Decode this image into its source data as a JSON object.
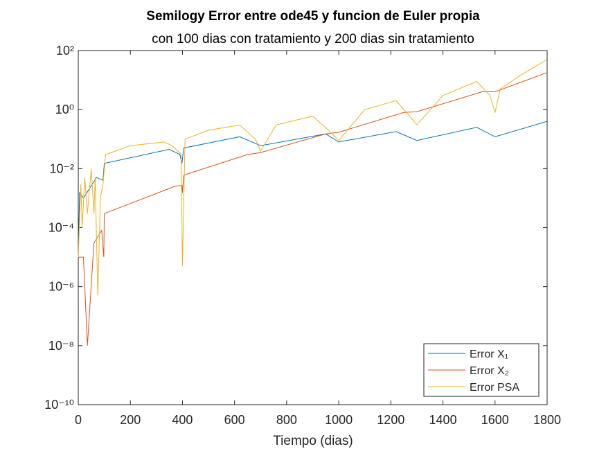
{
  "chart_data": {
    "type": "line",
    "title": "Semilogy Error entre ode45 y funcion de Euler propia",
    "subtitle": "con 100 dias con tratamiento y 200 dias sin tratamiento",
    "x_label": "Tiempo (dias)",
    "log_y": true,
    "legend_position": "lower-right",
    "xlim": [
      0,
      1800
    ],
    "xticks": [
      0,
      200,
      400,
      600,
      800,
      1000,
      1200,
      1400,
      1600,
      1800
    ],
    "ylim": [
      1e-10,
      100
    ],
    "yticks": [
      {
        "value": 1e-10,
        "label": "10⁻¹⁰"
      },
      {
        "value": 1e-08,
        "label": "10⁻⁸"
      },
      {
        "value": 1e-06,
        "label": "10⁻⁶"
      },
      {
        "value": 0.0001,
        "label": "10⁻⁴"
      },
      {
        "value": 0.01,
        "label": "10⁻²"
      },
      {
        "value": 1,
        "label": "10⁰"
      },
      {
        "value": 100,
        "label": "10²"
      }
    ],
    "series": [
      {
        "name": "Error X₁",
        "color": "#0072bd",
        "x": [
          0,
          5,
          20,
          70,
          95,
          100,
          350,
          390,
          398,
          405,
          620,
          700,
          950,
          1000,
          1220,
          1300,
          1530,
          1600,
          1800
        ],
        "values": [
          1e-05,
          0.0015,
          0.001,
          0.005,
          0.004,
          0.015,
          0.045,
          0.03,
          0.015,
          0.05,
          0.12,
          0.06,
          0.15,
          0.08,
          0.18,
          0.09,
          0.25,
          0.12,
          0.4
        ]
      },
      {
        "name": "Error X₂",
        "color": "#d95319",
        "x": [
          0,
          20,
          35,
          60,
          90,
          98,
          100,
          370,
          398,
          400,
          405,
          650,
          700,
          950,
          1000,
          1250,
          1300,
          1550,
          1600,
          1800
        ],
        "values": [
          1e-05,
          1e-05,
          1e-08,
          3e-05,
          8e-05,
          1e-05,
          0.0003,
          0.0025,
          0.0027,
          0.0015,
          0.006,
          0.03,
          0.035,
          0.15,
          0.17,
          0.8,
          0.85,
          4,
          4,
          18
        ]
      },
      {
        "name": "Error PSA",
        "color": "#edb120",
        "x": [
          0,
          10,
          15,
          25,
          35,
          50,
          60,
          65,
          75,
          85,
          95,
          105,
          200,
          330,
          360,
          395,
          400,
          410,
          500,
          620,
          680,
          700,
          760,
          900,
          960,
          1000,
          1100,
          1220,
          1280,
          1300,
          1400,
          1530,
          1580,
          1600,
          1620,
          1700,
          1800
        ],
        "values": [
          1e-05,
          0.003,
          0.0001,
          0.005,
          0.0003,
          0.01,
          0.0003,
          0.005,
          5e-07,
          0.001,
          0.003,
          0.03,
          0.06,
          0.08,
          0.06,
          0.03,
          5e-06,
          0.1,
          0.2,
          0.3,
          0.1,
          0.04,
          0.3,
          0.6,
          0.2,
          0.09,
          1,
          2,
          0.5,
          0.3,
          3,
          9,
          3,
          0.8,
          5,
          15,
          50
        ]
      }
    ]
  }
}
